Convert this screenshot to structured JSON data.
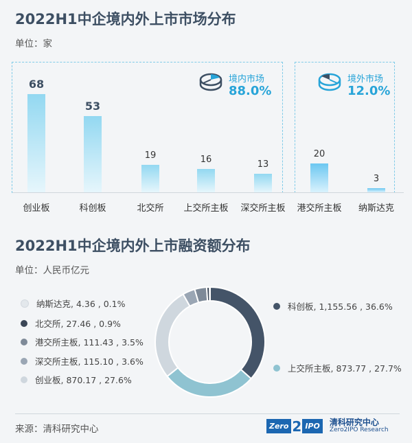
{
  "bar_section": {
    "title": "2022H1中企境内外上市市场分布",
    "unit": "单位：家",
    "domestic_label": "境内市场",
    "domestic_pct": "88.0%",
    "overseas_label": "境外市场",
    "overseas_pct": "12.0%"
  },
  "donut_section": {
    "title": "2022H1中企境内外上市融资额分布",
    "unit": "单位：人民币亿元"
  },
  "footer": {
    "source": "来源：清科研究中心",
    "logo_left": "Zero",
    "logo_two": "2",
    "logo_right": "IPO",
    "logo_cn": "清科研究中心",
    "logo_en": "Zero2IPO Research"
  },
  "chart_data": [
    {
      "type": "bar",
      "title": "2022H1中企境内外上市市场分布",
      "unit": "家",
      "categories": [
        "创业板",
        "科创板",
        "北交所",
        "上交所主板",
        "深交所主板",
        "港交所主板",
        "纳斯达克"
      ],
      "values": [
        68,
        53,
        19,
        16,
        13,
        20,
        3
      ],
      "groups": [
        {
          "name": "境内市场",
          "share": "88.0%",
          "categories": [
            "创业板",
            "科创板",
            "北交所",
            "上交所主板",
            "深交所主板"
          ]
        },
        {
          "name": "境外市场",
          "share": "12.0%",
          "categories": [
            "港交所主板",
            "纳斯达克"
          ]
        }
      ],
      "ylim": [
        0,
        75
      ]
    },
    {
      "type": "pie",
      "title": "2022H1中企境内外上市融资额分布",
      "unit": "人民币亿元",
      "slices": [
        {
          "label": "科创板",
          "value": 1155.56,
          "value_text": "1,155.56",
          "percent": "36.6%",
          "color": "#445468"
        },
        {
          "label": "上交所主板",
          "value": 873.77,
          "value_text": "873.77",
          "percent": "27.7%",
          "color": "#8fc3d1"
        },
        {
          "label": "创业板",
          "value": 870.17,
          "value_text": "870.17",
          "percent": "27.6%",
          "color": "#cfd7de"
        },
        {
          "label": "深交所主板",
          "value": 115.1,
          "value_text": "115.10",
          "percent": "3.6%",
          "color": "#9aa6b4"
        },
        {
          "label": "港交所主板",
          "value": 111.43,
          "value_text": "111.43",
          "percent": "3.5%",
          "color": "#7e8a98"
        },
        {
          "label": "北交所",
          "value": 27.46,
          "value_text": "27.46",
          "percent": "0.9%",
          "color": "#3a4656"
        },
        {
          "label": "纳斯达克",
          "value": 4.36,
          "value_text": "4.36",
          "percent": "0.1%",
          "color": "#e3e8ec"
        }
      ]
    }
  ]
}
